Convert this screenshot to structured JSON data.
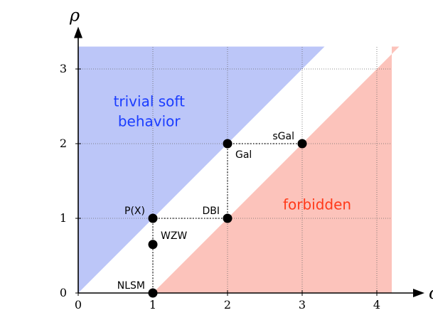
{
  "chart_data": {
    "type": "scatter",
    "xlabel": "σ",
    "ylabel": "ρ",
    "xlim": [
      0,
      4.2
    ],
    "ylim": [
      0,
      3.3
    ],
    "x_ticks": [
      0,
      1,
      2,
      3,
      4
    ],
    "y_ticks": [
      0,
      1,
      2,
      3
    ],
    "grid": true,
    "regions": [
      {
        "name": "trivial soft behavior",
        "lines": [
          "trivial soft",
          "behavior"
        ],
        "color": "#bcc6f8",
        "text_color": "#1a3cff",
        "bound": "rho > sigma",
        "label_pos": [
          0.95,
          2.5
        ]
      },
      {
        "name": "forbidden",
        "lines": [
          "forbidden"
        ],
        "color": "#fcc3bb",
        "text_color": "#ff3a1a",
        "bound": "rho < sigma - 1",
        "label_pos": [
          3.2,
          1.12
        ]
      }
    ],
    "points": [
      {
        "label": "NLSM",
        "x": 1,
        "y": 0,
        "anchor": "left"
      },
      {
        "label": "WZW",
        "x": 1,
        "y": 0.65,
        "anchor": "right-up"
      },
      {
        "label": "P(X)",
        "x": 1,
        "y": 1,
        "anchor": "left"
      },
      {
        "label": "DBI",
        "x": 2,
        "y": 1,
        "anchor": "left"
      },
      {
        "label": "Gal",
        "x": 2,
        "y": 2,
        "anchor": "right-down"
      },
      {
        "label": "sGal",
        "x": 3,
        "y": 2,
        "anchor": "left"
      }
    ],
    "dotted_segments": [
      [
        [
          1,
          0
        ],
        [
          1,
          1
        ]
      ],
      [
        [
          2,
          1
        ],
        [
          2,
          2
        ]
      ],
      [
        [
          1,
          1
        ],
        [
          2,
          1
        ]
      ],
      [
        [
          2,
          2
        ],
        [
          3,
          2
        ]
      ]
    ]
  }
}
